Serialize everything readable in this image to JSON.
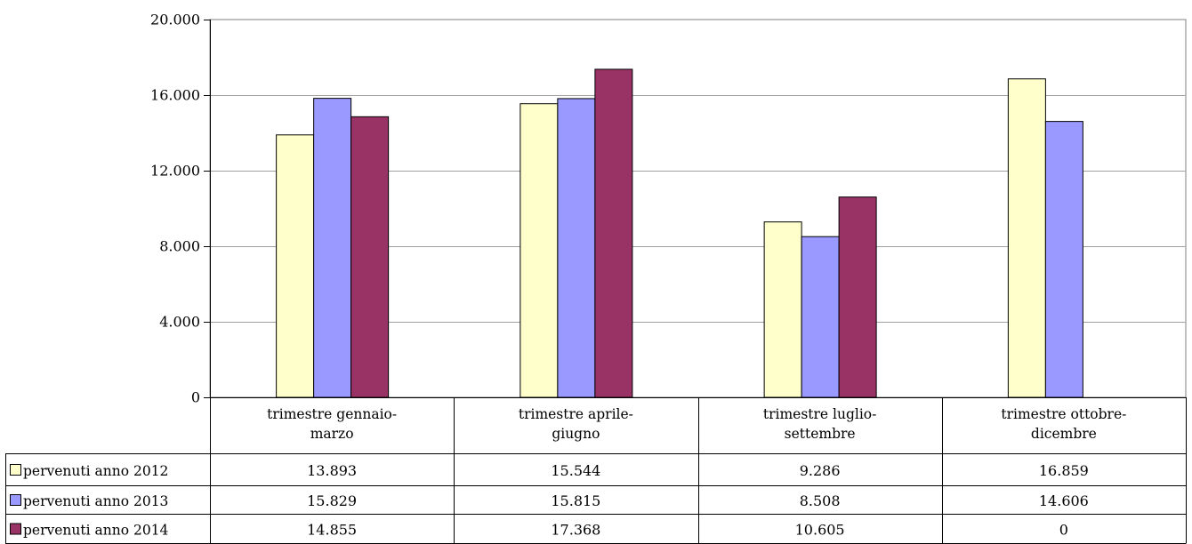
{
  "chart_data": {
    "type": "bar",
    "categories": [
      [
        "trimestre gennaio-",
        "marzo"
      ],
      [
        "trimestre aprile-",
        "giugno"
      ],
      [
        "trimestre luglio-",
        "settembre"
      ],
      [
        "trimestre ottobre-",
        "dicembre"
      ]
    ],
    "series": [
      {
        "name": "pervenuti anno 2012",
        "color": "#ffffcc",
        "values": [
          13893,
          15544,
          9286,
          16859
        ],
        "labels": [
          "13.893",
          "15.544",
          "9.286",
          "16.859"
        ]
      },
      {
        "name": "pervenuti anno 2013",
        "color": "#9999ff",
        "values": [
          15829,
          15815,
          8508,
          14606
        ],
        "labels": [
          "15.829",
          "15.815",
          "8.508",
          "14.606"
        ]
      },
      {
        "name": "pervenuti anno 2014",
        "color": "#993366",
        "values": [
          14855,
          17368,
          10605,
          0
        ],
        "labels": [
          "14.855",
          "17.368",
          "10.605",
          "0"
        ]
      }
    ],
    "ylim": [
      0,
      20000
    ],
    "yticks": [
      0,
      4000,
      8000,
      12000,
      16000,
      20000
    ],
    "ytick_labels": [
      "0",
      "4.000",
      "8.000",
      "12.000",
      "16.000",
      "20.000"
    ],
    "grid": true,
    "legend": "data-table"
  }
}
